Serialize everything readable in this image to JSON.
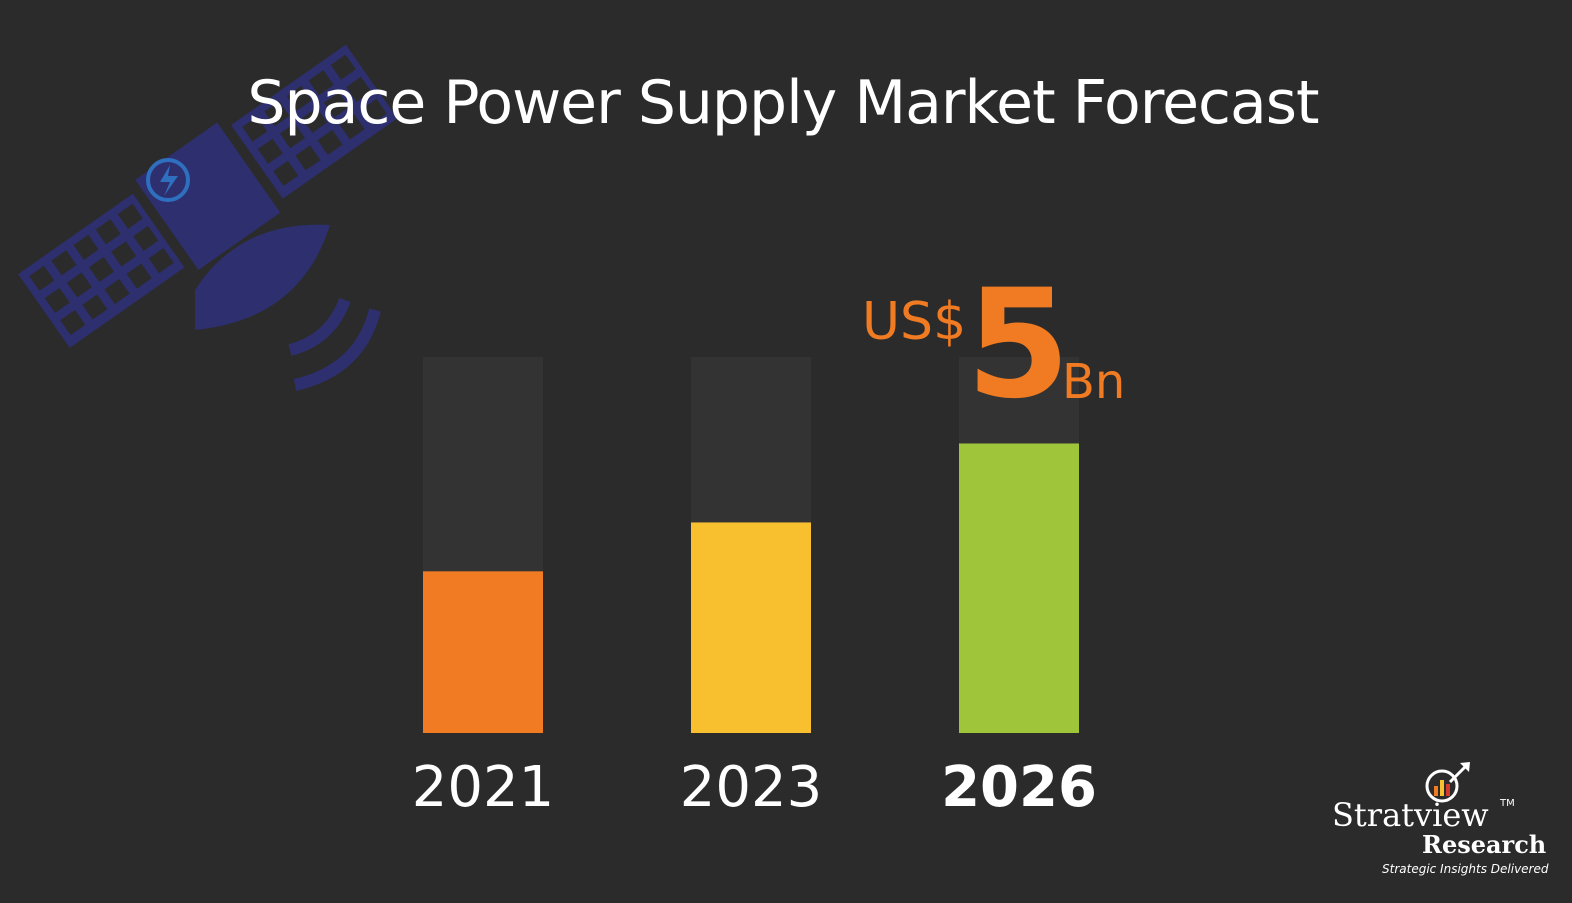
{
  "title": "Space Power Supply Market Forecast",
  "callout": {
    "currency": "US$",
    "value": "5",
    "unit": "Bn"
  },
  "brand": {
    "name": "Stratview",
    "tm": "TM",
    "sub": "Research",
    "tagline": "Strategic Insights Delivered"
  },
  "colors": {
    "background": "#2b2b2b",
    "track": "#333333",
    "accent": "#f07b22",
    "bars": [
      "#f07b22",
      "#f8c02f",
      "#9fc53a"
    ]
  },
  "chart_data": {
    "type": "bar",
    "categories": [
      "2021",
      "2023",
      "2026"
    ],
    "values": [
      0.43,
      0.56,
      0.77
    ],
    "highlight": "2026",
    "ylim": [
      0,
      1
    ],
    "grid": false
  }
}
